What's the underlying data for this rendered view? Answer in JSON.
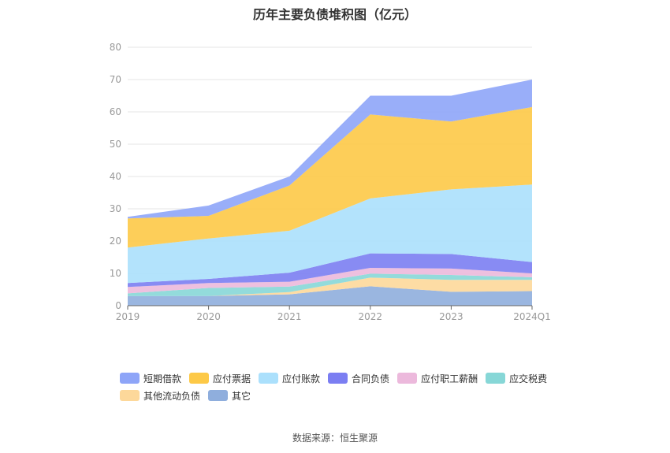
{
  "chart_data": {
    "type": "area",
    "title": "历年主要负债堆积图（亿元）",
    "xlabel": "",
    "ylabel": "",
    "categories": [
      "2019",
      "2020",
      "2021",
      "2022",
      "2023",
      "2024Q1"
    ],
    "ylim": [
      0,
      80
    ],
    "yticks": [
      0,
      10,
      20,
      30,
      40,
      50,
      60,
      70,
      80
    ],
    "grid": true,
    "legend_position": "bottom",
    "stacked": true,
    "series": [
      {
        "name": "其它",
        "color": "#8faedd",
        "values": [
          3.0,
          3.0,
          3.5,
          6.0,
          4.3,
          4.5
        ]
      },
      {
        "name": "其他流动负债",
        "color": "#fdd89a",
        "values": [
          0.0,
          0.0,
          0.7,
          2.7,
          3.7,
          3.5
        ]
      },
      {
        "name": "应交税费",
        "color": "#87d7d7",
        "values": [
          0.8,
          2.5,
          1.7,
          1.2,
          1.5,
          0.8
        ]
      },
      {
        "name": "应付职工薪酬",
        "color": "#ecb9dc",
        "values": [
          2.0,
          1.5,
          1.5,
          1.8,
          2.0,
          1.2
        ]
      },
      {
        "name": "合同负债",
        "color": "#7b7ef2",
        "values": [
          1.2,
          1.3,
          2.8,
          4.5,
          4.5,
          3.5
        ]
      },
      {
        "name": "应付账款",
        "color": "#abe0fc",
        "values": [
          11.0,
          12.5,
          13.0,
          17.0,
          20.0,
          24.0
        ]
      },
      {
        "name": "应付票据",
        "color": "#fdc947",
        "values": [
          9.0,
          7.0,
          14.0,
          26.0,
          21.0,
          24.0
        ]
      },
      {
        "name": "短期借款",
        "color": "#8ea5f8",
        "values": [
          0.5,
          3.2,
          2.8,
          5.8,
          8.0,
          8.5
        ]
      }
    ]
  },
  "legend": {
    "items": [
      {
        "label": "短期借款",
        "color": "#8ea5f8"
      },
      {
        "label": "应付票据",
        "color": "#fdc947"
      },
      {
        "label": "应付账款",
        "color": "#abe0fc"
      },
      {
        "label": "合同负债",
        "color": "#7b7ef2"
      },
      {
        "label": "应付职工薪酬",
        "color": "#ecb9dc"
      },
      {
        "label": "应交税费",
        "color": "#87d7d7"
      },
      {
        "label": "其他流动负债",
        "color": "#fdd89a"
      },
      {
        "label": "其它",
        "color": "#8faedd"
      }
    ]
  },
  "footer": {
    "source": "数据来源：恒生聚源"
  }
}
